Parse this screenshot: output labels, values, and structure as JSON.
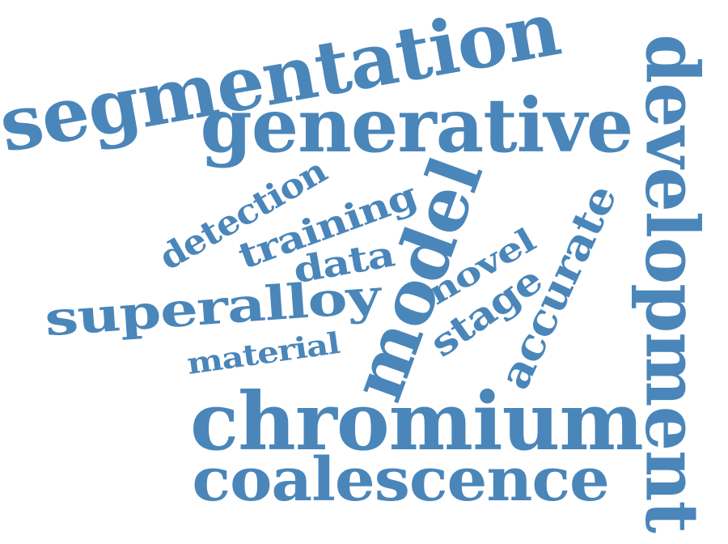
{
  "cloud": {
    "color": "#4a86b9",
    "words": {
      "segmentation": "segmentation",
      "generative": "generative",
      "development": "development",
      "model": "model",
      "detection": "detection",
      "training": "training",
      "data": "data",
      "novel": "novel",
      "accurate": "accurate",
      "superalloy": "superalloy",
      "stage": "stage",
      "material": "material",
      "chromium": "chromium",
      "coalescence": "coalescence"
    }
  }
}
